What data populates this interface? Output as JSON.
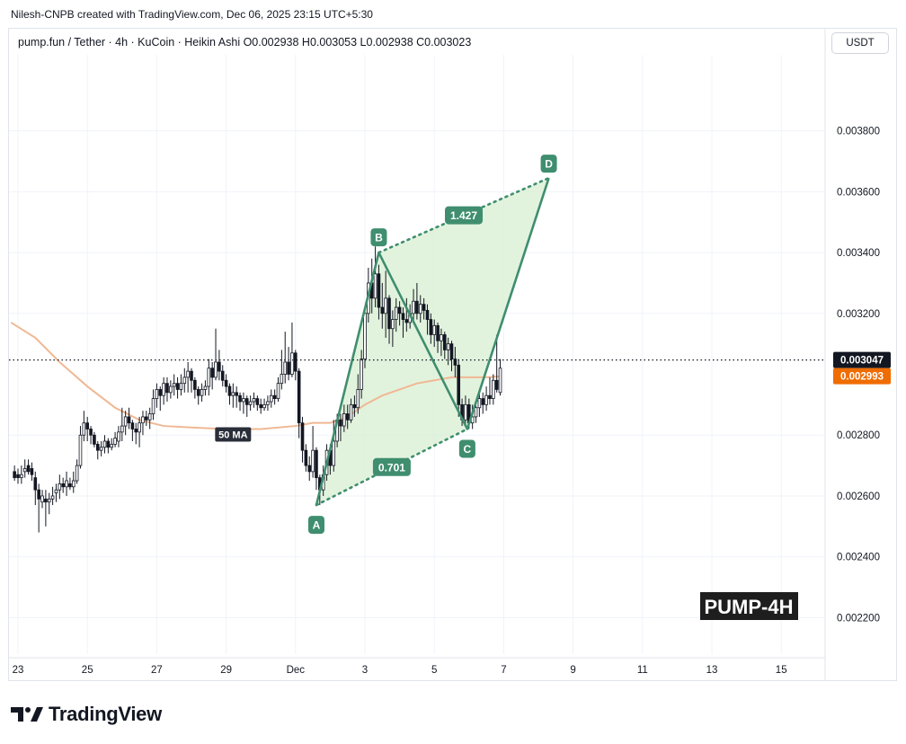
{
  "attribution": "Nilesh-CNPB created with TradingView.com, Dec 06, 2025 23:15 UTC+5:30",
  "symbol_line": "pump.fun / Tether · 4h · KuCoin · Heikin Ashi  O0.002938  H0.003053  L0.002938  C0.003023",
  "currency": "USDT",
  "brand": "TradingView",
  "brand_icon": "tradingview-logo-icon",
  "colors": {
    "up": "#ffffff",
    "down": "#131722",
    "pattern_line": "#3f8e6f",
    "pattern_fill": "#d8efd2",
    "label_bg": "#3f8e6f",
    "ma_line": "#f0b894",
    "ma_badge": "#ef6c00",
    "price_badge": "#131722",
    "watermark_bg": "#1e1e1e"
  },
  "chart_data": {
    "type": "candlestick",
    "chart_style": "Heikin Ashi",
    "interval": "4h",
    "exchange": "KuCoin",
    "pair": "pump.fun / Tether",
    "ohlc_last": {
      "open": 0.002938,
      "high": 0.003053,
      "low": 0.002938,
      "close": 0.003023
    },
    "ylim": [
      0.00208,
      0.00405
    ],
    "y_ticks": [
      "0.003800",
      "0.003600",
      "0.003400",
      "0.003200",
      "0.002800",
      "0.002600",
      "0.002400",
      "0.002200"
    ],
    "x_ticks": [
      {
        "label": "23",
        "day": 0
      },
      {
        "label": "25",
        "day": 2
      },
      {
        "label": "27",
        "day": 4
      },
      {
        "label": "29",
        "day": 6
      },
      {
        "label": "Dec",
        "day": 8
      },
      {
        "label": "3",
        "day": 10
      },
      {
        "label": "5",
        "day": 12
      },
      {
        "label": "7",
        "day": 14
      },
      {
        "label": "9",
        "day": 16
      },
      {
        "label": "11",
        "day": 18
      },
      {
        "label": "13",
        "day": 20
      },
      {
        "label": "15",
        "day": 22
      }
    ],
    "last_price": {
      "value": 0.003047,
      "label": "0.003047"
    },
    "ma": {
      "label": "50 MA",
      "badge": "0.002993",
      "points": [
        [
          -0.2,
          0.00317
        ],
        [
          0.5,
          0.00312
        ],
        [
          1.2,
          0.00304
        ],
        [
          2,
          0.00296
        ],
        [
          2.8,
          0.00289
        ],
        [
          3.5,
          0.00285
        ],
        [
          4.2,
          0.00283
        ],
        [
          5,
          0.002825
        ],
        [
          6,
          0.00282
        ],
        [
          7,
          0.00282
        ],
        [
          8,
          0.00283
        ],
        [
          8.5,
          0.00284
        ],
        [
          9,
          0.00284
        ],
        [
          9.5,
          0.00286
        ],
        [
          10,
          0.0029
        ],
        [
          10.5,
          0.00293
        ],
        [
          11,
          0.00295
        ],
        [
          11.5,
          0.00297
        ],
        [
          12,
          0.00298
        ],
        [
          12.5,
          0.00299
        ],
        [
          13,
          0.00299
        ],
        [
          13.5,
          0.00299
        ],
        [
          13.9,
          0.002993
        ]
      ]
    },
    "candles": [
      [
        -0.1,
        0.00268,
        0.00266,
        0.0027,
        0.00265
      ],
      [
        0.0,
        0.00267,
        0.00266,
        0.00269,
        0.00264
      ],
      [
        0.1,
        0.00266,
        0.00267,
        0.0027,
        0.00264
      ],
      [
        0.2,
        0.00268,
        0.00269,
        0.00272,
        0.00266
      ],
      [
        0.3,
        0.0027,
        0.00268,
        0.00272,
        0.00267
      ],
      [
        0.4,
        0.00269,
        0.00267,
        0.00271,
        0.00265
      ],
      [
        0.5,
        0.00266,
        0.00262,
        0.00268,
        0.00257
      ],
      [
        0.6,
        0.00262,
        0.00259,
        0.00264,
        0.00248
      ],
      [
        0.7,
        0.00258,
        0.0026,
        0.00262,
        0.00256
      ],
      [
        0.8,
        0.00259,
        0.00258,
        0.00262,
        0.0025
      ],
      [
        0.9,
        0.00258,
        0.00259,
        0.00261,
        0.00254
      ],
      [
        1.0,
        0.00259,
        0.0026,
        0.00263,
        0.00257
      ],
      [
        1.1,
        0.00261,
        0.00262,
        0.00264,
        0.00258
      ],
      [
        1.2,
        0.00262,
        0.00264,
        0.00267,
        0.00259
      ],
      [
        1.3,
        0.00264,
        0.00263,
        0.00266,
        0.00261
      ],
      [
        1.4,
        0.00263,
        0.00265,
        0.00268,
        0.0026
      ],
      [
        1.5,
        0.00264,
        0.00263,
        0.00266,
        0.00262
      ],
      [
        1.6,
        0.00263,
        0.00265,
        0.00268,
        0.00261
      ],
      [
        1.7,
        0.00265,
        0.0027,
        0.00272,
        0.00264
      ],
      [
        1.8,
        0.0027,
        0.0028,
        0.00283,
        0.00269
      ],
      [
        1.9,
        0.0028,
        0.00284,
        0.00288,
        0.00278
      ],
      [
        2.0,
        0.00284,
        0.00282,
        0.00286,
        0.00278
      ],
      [
        2.1,
        0.00282,
        0.0028,
        0.00283,
        0.00277
      ],
      [
        2.2,
        0.0028,
        0.00277,
        0.00281,
        0.00276
      ],
      [
        2.3,
        0.00277,
        0.00275,
        0.00278,
        0.00272
      ],
      [
        2.4,
        0.00275,
        0.00276,
        0.00278,
        0.00273
      ],
      [
        2.5,
        0.00276,
        0.00278,
        0.0028,
        0.00274
      ],
      [
        2.6,
        0.00278,
        0.00276,
        0.00279,
        0.00274
      ],
      [
        2.7,
        0.00276,
        0.00277,
        0.00279,
        0.00275
      ],
      [
        2.8,
        0.00277,
        0.00279,
        0.00281,
        0.00276
      ],
      [
        2.9,
        0.00278,
        0.00281,
        0.00283,
        0.00276
      ],
      [
        3.0,
        0.00281,
        0.00283,
        0.00289,
        0.00278
      ],
      [
        3.1,
        0.00283,
        0.00286,
        0.00288,
        0.0028
      ],
      [
        3.2,
        0.00286,
        0.00284,
        0.00289,
        0.00282
      ],
      [
        3.3,
        0.00284,
        0.00282,
        0.00285,
        0.00278
      ],
      [
        3.4,
        0.00282,
        0.00281,
        0.00284,
        0.00277
      ],
      [
        3.5,
        0.00281,
        0.00284,
        0.00286,
        0.00276
      ],
      [
        3.6,
        0.00284,
        0.00286,
        0.00288,
        0.0028
      ],
      [
        3.7,
        0.00286,
        0.00285,
        0.00288,
        0.00283
      ],
      [
        3.8,
        0.00285,
        0.00287,
        0.00289,
        0.00282
      ],
      [
        3.9,
        0.00287,
        0.00292,
        0.00295,
        0.00285
      ],
      [
        4.0,
        0.00292,
        0.00295,
        0.00297,
        0.00289
      ],
      [
        4.1,
        0.00295,
        0.00293,
        0.00296,
        0.00288
      ],
      [
        4.2,
        0.00293,
        0.00297,
        0.00299,
        0.0029
      ],
      [
        4.3,
        0.00297,
        0.00294,
        0.00299,
        0.00291
      ],
      [
        4.4,
        0.00294,
        0.00296,
        0.00298,
        0.00292
      ],
      [
        4.5,
        0.00296,
        0.00297,
        0.003,
        0.00293
      ],
      [
        4.6,
        0.00297,
        0.00295,
        0.00299,
        0.00292
      ],
      [
        4.7,
        0.00295,
        0.00297,
        0.003,
        0.00293
      ],
      [
        4.8,
        0.00297,
        0.00299,
        0.00302,
        0.00294
      ],
      [
        4.9,
        0.00299,
        0.00301,
        0.00304,
        0.00294
      ],
      [
        5.0,
        0.00301,
        0.00298,
        0.00302,
        0.00294
      ],
      [
        5.1,
        0.00298,
        0.00295,
        0.00299,
        0.00292
      ],
      [
        5.2,
        0.00295,
        0.00293,
        0.00296,
        0.0029
      ],
      [
        5.3,
        0.00293,
        0.00295,
        0.00297,
        0.00291
      ],
      [
        5.4,
        0.00295,
        0.00296,
        0.00298,
        0.00293
      ],
      [
        5.5,
        0.00296,
        0.00302,
        0.00305,
        0.00293
      ],
      [
        5.6,
        0.00302,
        0.00299,
        0.00304,
        0.00295
      ],
      [
        5.7,
        0.00299,
        0.00304,
        0.00315,
        0.00298
      ],
      [
        5.8,
        0.00304,
        0.00301,
        0.00308,
        0.00298
      ],
      [
        5.9,
        0.00301,
        0.00298,
        0.00303,
        0.00296
      ],
      [
        6.0,
        0.00298,
        0.00296,
        0.003,
        0.00294
      ],
      [
        6.1,
        0.00296,
        0.00293,
        0.00297,
        0.0029
      ],
      [
        6.2,
        0.00293,
        0.00294,
        0.00297,
        0.00289
      ],
      [
        6.3,
        0.00294,
        0.00293,
        0.00296,
        0.00289
      ],
      [
        6.4,
        0.00293,
        0.00291,
        0.00294,
        0.00288
      ],
      [
        6.5,
        0.00291,
        0.00292,
        0.00294,
        0.00287
      ],
      [
        6.6,
        0.00292,
        0.0029,
        0.00293,
        0.00286
      ],
      [
        6.7,
        0.0029,
        0.00291,
        0.00293,
        0.00288
      ],
      [
        6.8,
        0.00291,
        0.00292,
        0.00294,
        0.00289
      ],
      [
        6.9,
        0.00292,
        0.0029,
        0.00293,
        0.00288
      ],
      [
        7.0,
        0.0029,
        0.00289,
        0.00292,
        0.00287
      ],
      [
        7.1,
        0.00289,
        0.0029,
        0.00292,
        0.00288
      ],
      [
        7.2,
        0.0029,
        0.00291,
        0.00293,
        0.00288
      ],
      [
        7.3,
        0.00291,
        0.00293,
        0.00295,
        0.00289
      ],
      [
        7.4,
        0.00293,
        0.00292,
        0.00295,
        0.0029
      ],
      [
        7.5,
        0.00292,
        0.00297,
        0.00299,
        0.00291
      ],
      [
        7.6,
        0.00297,
        0.003,
        0.00308,
        0.00295
      ],
      [
        7.7,
        0.003,
        0.00304,
        0.00314,
        0.00297
      ],
      [
        7.8,
        0.00304,
        0.003,
        0.00309,
        0.00298
      ],
      [
        7.9,
        0.003,
        0.00307,
        0.00317,
        0.00299
      ],
      [
        8.0,
        0.00307,
        0.00301,
        0.00308,
        0.00298
      ],
      [
        8.1,
        0.00301,
        0.00284,
        0.00302,
        0.00279
      ],
      [
        8.2,
        0.00284,
        0.00275,
        0.00286,
        0.00271
      ],
      [
        8.3,
        0.00275,
        0.0027,
        0.00277,
        0.00268
      ],
      [
        8.4,
        0.0027,
        0.00268,
        0.00273,
        0.00265
      ],
      [
        8.5,
        0.00268,
        0.00275,
        0.00283,
        0.00266
      ],
      [
        8.6,
        0.00275,
        0.00266,
        0.00276,
        0.00262
      ],
      [
        8.7,
        0.00266,
        0.00262,
        0.00267,
        0.00257
      ],
      [
        8.8,
        0.00262,
        0.00267,
        0.0027,
        0.0026
      ],
      [
        8.9,
        0.00267,
        0.00275,
        0.00277,
        0.00265
      ],
      [
        9.0,
        0.00275,
        0.0027,
        0.00277,
        0.00267
      ],
      [
        9.1,
        0.0027,
        0.00278,
        0.00285,
        0.00268
      ],
      [
        9.2,
        0.00278,
        0.00285,
        0.00287,
        0.00276
      ],
      [
        9.3,
        0.00285,
        0.00283,
        0.00287,
        0.00278
      ],
      [
        9.4,
        0.00283,
        0.00287,
        0.0029,
        0.00281
      ],
      [
        9.5,
        0.00287,
        0.00285,
        0.0029,
        0.00282
      ],
      [
        9.6,
        0.00285,
        0.0029,
        0.00292,
        0.00284
      ],
      [
        9.7,
        0.0029,
        0.00289,
        0.00293,
        0.00286
      ],
      [
        9.8,
        0.00289,
        0.00295,
        0.003,
        0.00287
      ],
      [
        9.9,
        0.00295,
        0.00305,
        0.00308,
        0.00292
      ],
      [
        10.0,
        0.00305,
        0.0032,
        0.00322,
        0.00302
      ],
      [
        10.1,
        0.0032,
        0.0033,
        0.00335,
        0.00317
      ],
      [
        10.2,
        0.0033,
        0.00325,
        0.00338,
        0.0032
      ],
      [
        10.3,
        0.00325,
        0.00333,
        0.00342,
        0.00322
      ],
      [
        10.4,
        0.00333,
        0.00322,
        0.00336,
        0.00318
      ],
      [
        10.5,
        0.00322,
        0.0032,
        0.0033,
        0.00315
      ],
      [
        10.6,
        0.0032,
        0.00325,
        0.00334,
        0.00312
      ],
      [
        10.7,
        0.00325,
        0.00315,
        0.00326,
        0.0031
      ],
      [
        10.8,
        0.00315,
        0.00318,
        0.00321,
        0.00309
      ],
      [
        10.9,
        0.00318,
        0.00322,
        0.00325,
        0.00314
      ],
      [
        11.0,
        0.00322,
        0.0032,
        0.00324,
        0.00316
      ],
      [
        11.1,
        0.0032,
        0.00318,
        0.00322,
        0.00312
      ],
      [
        11.2,
        0.00318,
        0.00317,
        0.00325,
        0.00314
      ],
      [
        11.3,
        0.00317,
        0.0032,
        0.00323,
        0.00315
      ],
      [
        11.4,
        0.0032,
        0.00324,
        0.00328,
        0.00317
      ],
      [
        11.5,
        0.00324,
        0.0032,
        0.0033,
        0.00318
      ],
      [
        11.6,
        0.0032,
        0.00323,
        0.00326,
        0.00317
      ],
      [
        11.7,
        0.00323,
        0.00321,
        0.00325,
        0.00318
      ],
      [
        11.8,
        0.00321,
        0.00318,
        0.00323,
        0.00313
      ],
      [
        11.9,
        0.00318,
        0.00313,
        0.0032,
        0.0031
      ],
      [
        12.0,
        0.00313,
        0.00316,
        0.00318,
        0.00309
      ],
      [
        12.1,
        0.00316,
        0.00311,
        0.00317,
        0.00307
      ],
      [
        12.2,
        0.00311,
        0.00313,
        0.00315,
        0.00306
      ],
      [
        12.3,
        0.00313,
        0.00308,
        0.00314,
        0.00305
      ],
      [
        12.4,
        0.00308,
        0.0031,
        0.00312,
        0.00303
      ],
      [
        12.5,
        0.0031,
        0.00305,
        0.00311,
        0.00301
      ],
      [
        12.6,
        0.00305,
        0.00303,
        0.00309,
        0.00299
      ],
      [
        12.7,
        0.00303,
        0.0029,
        0.00305,
        0.00286
      ],
      [
        12.8,
        0.0029,
        0.00285,
        0.00292,
        0.00283
      ],
      [
        12.9,
        0.00285,
        0.0029,
        0.00293,
        0.00283
      ],
      [
        13.0,
        0.0029,
        0.00284,
        0.00292,
        0.00282
      ],
      [
        13.1,
        0.00284,
        0.00286,
        0.0029,
        0.00282
      ],
      [
        13.2,
        0.00286,
        0.00289,
        0.00291,
        0.00284
      ],
      [
        13.3,
        0.00289,
        0.00292,
        0.00294,
        0.00286
      ],
      [
        13.4,
        0.00292,
        0.0029,
        0.00294,
        0.00287
      ],
      [
        13.5,
        0.0029,
        0.00293,
        0.00296,
        0.00288
      ],
      [
        13.6,
        0.00293,
        0.00292,
        0.00299,
        0.0029
      ],
      [
        13.7,
        0.00292,
        0.00298,
        0.003,
        0.0029
      ],
      [
        13.8,
        0.00298,
        0.00295,
        0.00313,
        0.00294
      ],
      [
        13.9,
        0.00294,
        0.00302,
        0.00305,
        0.00293
      ]
    ],
    "pattern": {
      "points": [
        {
          "label": "A",
          "day": 8.6,
          "value": 0.00257
        },
        {
          "label": "B",
          "day": 10.4,
          "value": 0.0034
        },
        {
          "label": "C",
          "day": 12.95,
          "value": 0.00282
        },
        {
          "label": "D",
          "day": 15.3,
          "value": 0.003645
        }
      ],
      "ratios": [
        {
          "label": "0.701",
          "from": "A",
          "to": "C"
        },
        {
          "label": "1.427",
          "from": "B",
          "to": "D"
        }
      ]
    },
    "watermark": "PUMP-4H"
  }
}
